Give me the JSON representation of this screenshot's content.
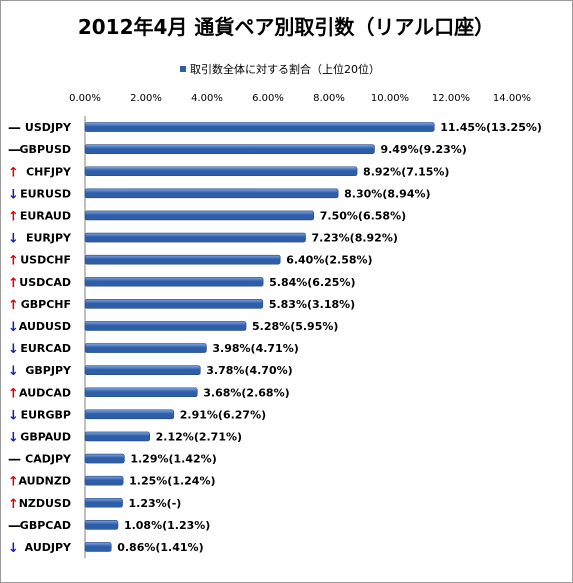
{
  "colors": {
    "bar": "#2f5ea9",
    "bar_light": "#7fa6e0",
    "up": "#e00000",
    "down": "#1a1ab0",
    "flat": "#000000"
  },
  "chart_data": {
    "type": "bar",
    "orientation": "horizontal",
    "title": "2012年4月 通貨ペア別取引数（リアル口座）",
    "legend": {
      "label": "取引数全体に対する割合（上位20位）",
      "placement": "top"
    },
    "xlim": [
      0,
      14
    ],
    "x_ticks": [
      "0.00%",
      "2.00%",
      "4.00%",
      "6.00%",
      "8.00%",
      "10.00%",
      "12.00%",
      "14.00%"
    ],
    "x_axis_position": "top",
    "grid": false,
    "categories": [
      "USDJPY",
      "GBPUSD",
      "CHFJPY",
      "EURUSD",
      "EURAUD",
      "EURJPY",
      "USDCHF",
      "USDCAD",
      "GBPCHF",
      "AUDUSD",
      "EURCAD",
      "GBPJPY",
      "AUDCAD",
      "EURGBP",
      "GBPAUD",
      "CADJPY",
      "AUDNZD",
      "NZDUSD",
      "GBPCAD",
      "AUDJPY"
    ],
    "trend": [
      "flat",
      "flat",
      "up",
      "down",
      "up",
      "down",
      "up",
      "up",
      "up",
      "down",
      "down",
      "down",
      "up",
      "down",
      "down",
      "flat",
      "up",
      "up",
      "flat",
      "down"
    ],
    "trend_symbols": {
      "up": "↑",
      "down": "↓",
      "flat": "—"
    },
    "values": [
      11.45,
      9.49,
      8.92,
      8.3,
      7.5,
      7.23,
      6.4,
      5.84,
      5.83,
      5.28,
      3.98,
      3.78,
      3.68,
      2.91,
      2.12,
      1.29,
      1.25,
      1.23,
      1.08,
      0.86
    ],
    "value_labels": [
      "11.45%(13.25%)",
      "9.49%(9.23%)",
      "8.92%(7.15%)",
      "8.30%(8.94%)",
      "7.50%(6.58%)",
      "7.23%(8.92%)",
      "6.40%(2.58%)",
      "5.84%(6.25%)",
      "5.83%(3.18%)",
      "5.28%(5.95%)",
      "3.98%(4.71%)",
      "3.78%(4.70%)",
      "3.68%(2.68%)",
      "2.91%(6.27%)",
      "2.12%(2.71%)",
      "1.29%(1.42%)",
      "1.25%(1.24%)",
      "1.23%(-)",
      "1.08%(1.23%)",
      "0.86%(1.41%)"
    ]
  }
}
